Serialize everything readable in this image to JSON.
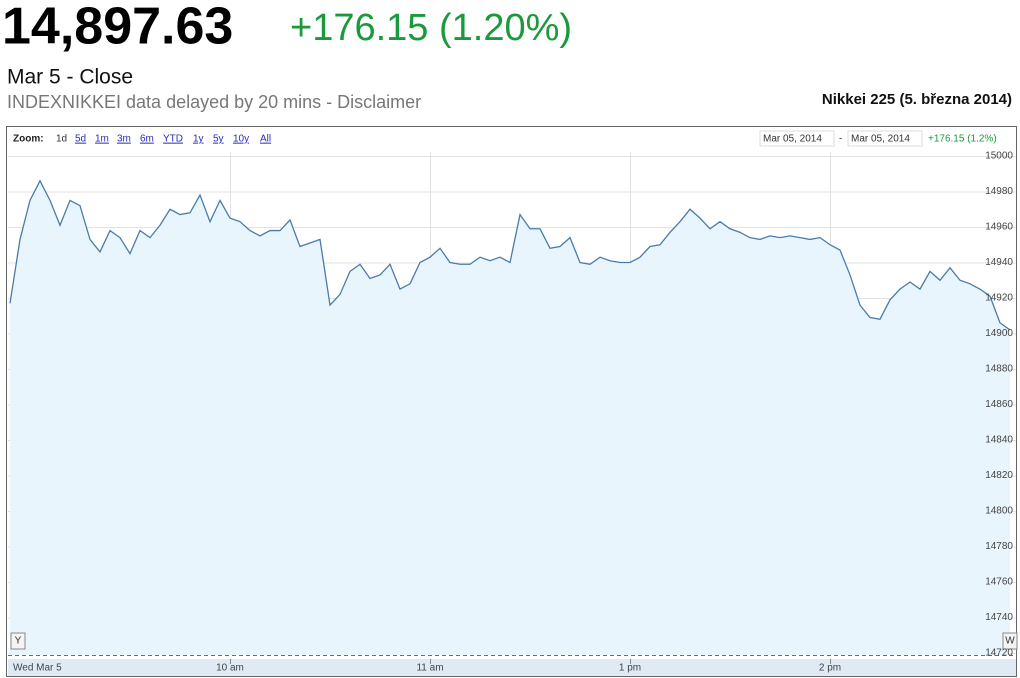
{
  "header": {
    "price": "14,897.63",
    "change": "+176.15 (1.20%)",
    "date": "Mar 5 - Close",
    "note": "INDEXNIKKEI data delayed by 20 mins - Disclaimer"
  },
  "zoom": {
    "label": "Zoom:",
    "options": [
      "1d",
      "5d",
      "1m",
      "3m",
      "6m",
      "YTD",
      "1y",
      "5y",
      "10y",
      "All"
    ]
  },
  "range": {
    "from": "Mar 05, 2014",
    "separator": "-",
    "to": "Mar 05, 2014",
    "change": "+176.15 (1.2%)"
  },
  "controls": {
    "left": "Y",
    "right": "W"
  },
  "chart_data": {
    "type": "area",
    "title": "Nikkei 225 (5. března 2014)",
    "color": "#4a7bab",
    "fill": "#e9f5fc",
    "grid": true,
    "categories": [
      "Wed Mar 5",
      null,
      null,
      null,
      null,
      null,
      null,
      null,
      null,
      null,
      null,
      null,
      null,
      null,
      null,
      null,
      null,
      null,
      null,
      null,
      null,
      null,
      "10 am",
      null,
      null,
      null,
      null,
      null,
      null,
      null,
      null,
      null,
      null,
      null,
      null,
      null,
      null,
      null,
      null,
      null,
      null,
      null,
      "11 am",
      null,
      null,
      null,
      null,
      null,
      null,
      null,
      null,
      null,
      null,
      null,
      null,
      null,
      null,
      null,
      null,
      null,
      null,
      null,
      "1 pm",
      null,
      null,
      null,
      null,
      null,
      null,
      null,
      null,
      null,
      null,
      null,
      null,
      null,
      null,
      null,
      null,
      null,
      null,
      null,
      "2 pm",
      null,
      null,
      null,
      null,
      null,
      null,
      null,
      null,
      null,
      null,
      null,
      null,
      null,
      null,
      null,
      null,
      null,
      null
    ],
    "values": [
      14917,
      14953,
      14975,
      14986,
      14975,
      14961,
      14975,
      14972,
      14953,
      14946,
      14958,
      14954,
      14945,
      14958,
      14954,
      14961,
      14970,
      14967,
      14968,
      14978,
      14963,
      14975,
      14965,
      14963,
      14958,
      14955,
      14958,
      14958,
      14964,
      14949,
      14951,
      14953,
      14916,
      14922,
      14935,
      14939,
      14931,
      14933,
      14939,
      14925,
      14928,
      14940,
      14943,
      14948,
      14940,
      14939,
      14939,
      14943,
      14941,
      14943,
      14940,
      14967,
      14959,
      14959,
      14948,
      14949,
      14954,
      14940,
      14939,
      14943,
      14941,
      14940,
      14940,
      14943,
      14949,
      14950,
      14957,
      14963,
      14970,
      14965,
      14959,
      14963,
      14959,
      14957,
      14954,
      14953,
      14955,
      14954,
      14955,
      14954,
      14953,
      14954,
      14950,
      14947,
      14933,
      14916,
      14909,
      14908,
      14919,
      14925,
      14929,
      14925,
      14935,
      14930,
      14937,
      14930,
      14928,
      14925,
      14921,
      14906,
      14902
    ],
    "ylim": [
      14720,
      15000
    ],
    "yticks": [
      14720,
      14740,
      14760,
      14780,
      14800,
      14820,
      14840,
      14860,
      14880,
      14900,
      14920,
      14940,
      14960,
      14980,
      15000
    ]
  }
}
